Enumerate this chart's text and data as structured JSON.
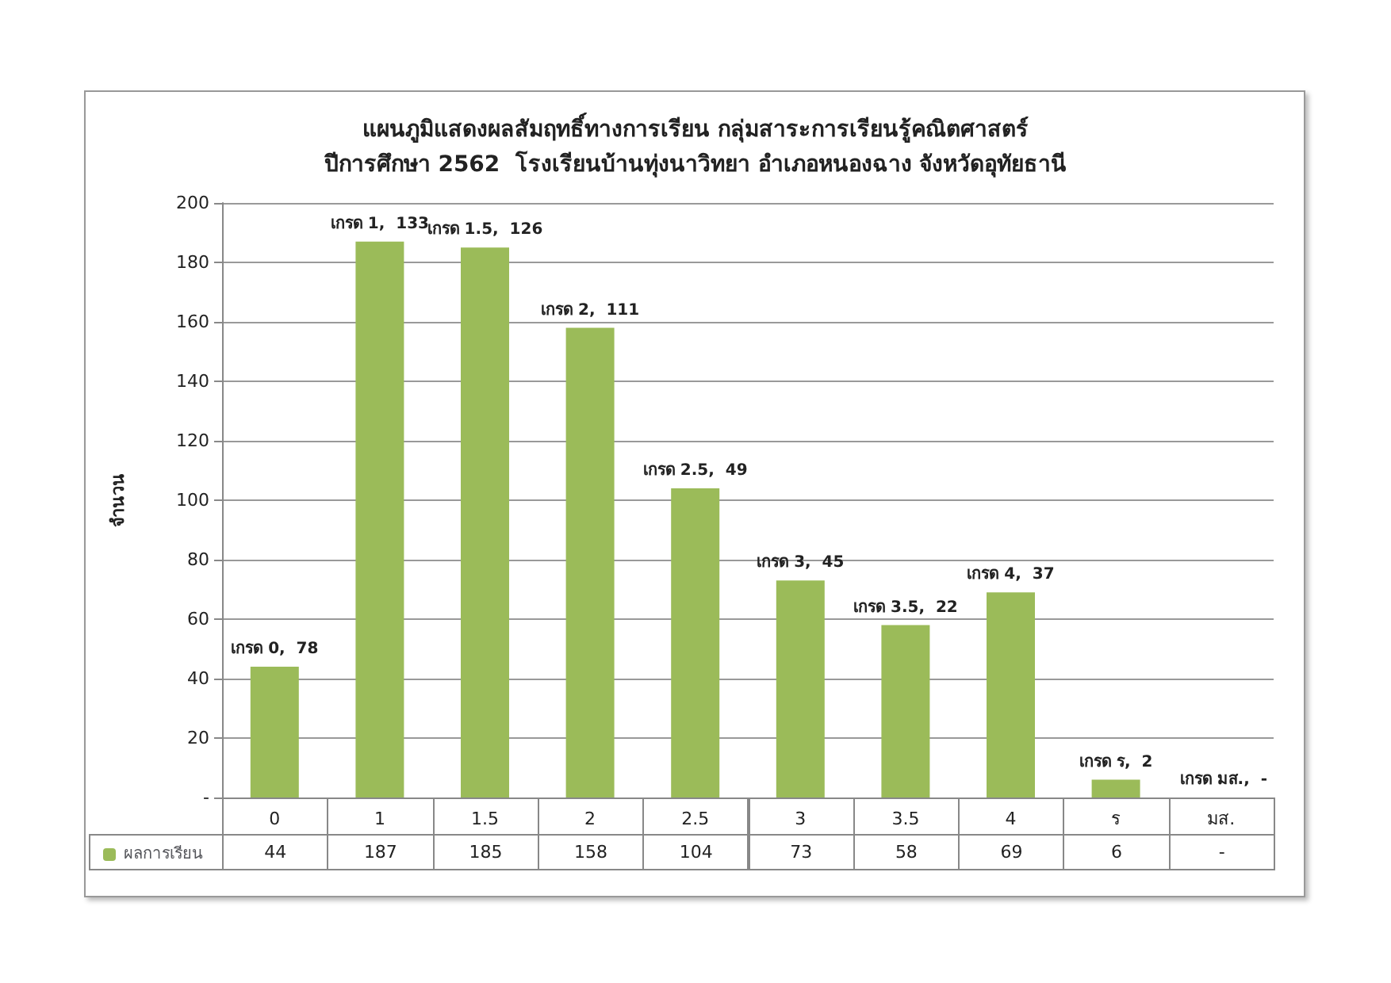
{
  "chart_data": {
    "type": "bar",
    "title": "แผนภูมิแสดงผลสัมฤทธิ์ทางการเรียน กลุ่มสาระการเรียนรู้คณิตศาสตร์\nปีการศึกษา 2562  โรงเรียนบ้านทุ่งนาวิทยา อำเภอหนองฉาง จังหวัดอุทัยธานี",
    "ylabel": "จำนวน",
    "categories": [
      "0",
      "1",
      "1.5",
      "2",
      "2.5",
      "3",
      "3.5",
      "4",
      "ร",
      "มส."
    ],
    "series": [
      {
        "name": "ผลการเรียน",
        "color": "#9bbb59",
        "values": [
          44,
          187,
          185,
          158,
          104,
          73,
          58,
          69,
          6,
          null
        ],
        "value_labels": [
          "44",
          "187",
          "185",
          "158",
          "104",
          "73",
          "58",
          "69",
          "6",
          "-"
        ]
      }
    ],
    "ylim": [
      0,
      200
    ],
    "yticks": [
      {
        "value": 0,
        "label": "-"
      },
      20,
      40,
      60,
      80,
      100,
      120,
      140,
      160,
      180,
      200
    ],
    "grid": "y",
    "legend": "bottom",
    "annotations": [
      {
        "text": "เกรด 0,  78",
        "x": "0",
        "y": 44
      },
      {
        "text": "เกรด 1,  133",
        "x": "1",
        "y": 187
      },
      {
        "text": "เกรด 1.5,  126",
        "x": "1.5",
        "y": 185
      },
      {
        "text": "เกรด 2,  111",
        "x": "2",
        "y": 158
      },
      {
        "text": "เกรด 2.5,  49",
        "x": "2.5",
        "y": 104
      },
      {
        "text": "เกรด 3,  45",
        "x": "3",
        "y": 73
      },
      {
        "text": "เกรด 3.5,  22",
        "x": "3.5",
        "y": 58
      },
      {
        "text": "เกรด 4,  37",
        "x": "4",
        "y": 69
      },
      {
        "text": "เกรด ร,  2",
        "x": "ร",
        "y": 6
      },
      "เกรด มส.,  -"
    ]
  }
}
